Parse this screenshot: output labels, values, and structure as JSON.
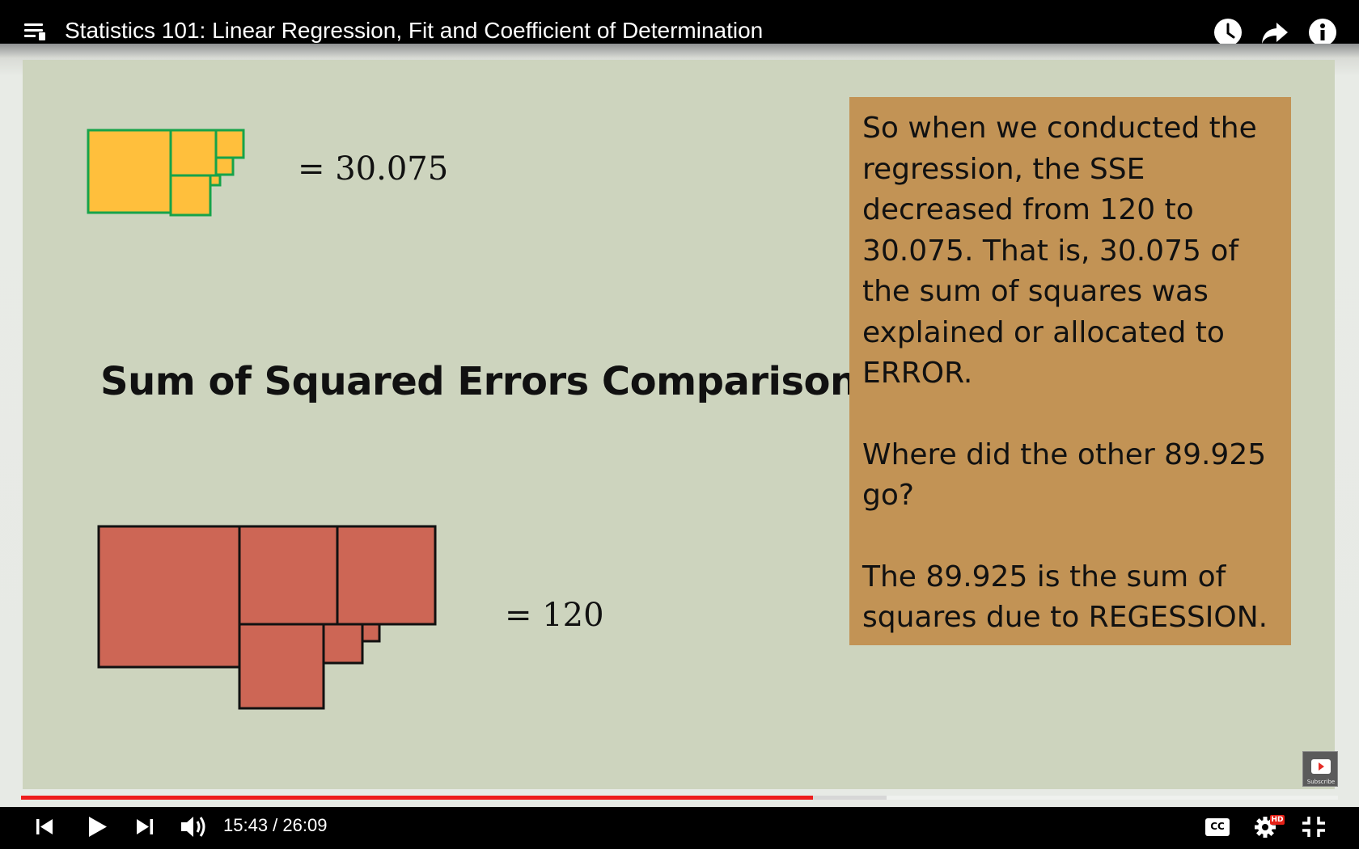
{
  "video": {
    "title": "Statistics 101: Linear Regression, Fit and Coefficient of Determination"
  },
  "top_icons": [
    "playlist-icon",
    "watch-later-clock-icon",
    "share-arrow-icon",
    "info-icon"
  ],
  "slide": {
    "top_value": "= 30.075",
    "heading": "Sum of Squared Errors Comparison",
    "bottom_value": "= 120",
    "text_box": {
      "p1": "So when we conducted the regression, the SSE decreased from 120 to 30.075. That is, 30.075 of the sum of squares was explained or allocated to ERROR.",
      "p2": "Where did the other 89.925 go?",
      "p3": "The 89.925 is the sum of squares due to REGESSION."
    },
    "colors": {
      "slide_bg": "#cdd4be",
      "yellow_square": "#ffbf3c",
      "yellow_border": "#16a34a",
      "red_square": "#cd6655",
      "text_box_bg": "#c29355"
    }
  },
  "player": {
    "time_display": "15:43 / 26:09",
    "played_fraction": 0.6015,
    "buffered_fraction": 0.657,
    "cc_label": "CC",
    "hd_badge": "HD",
    "subscribe_label": "Subscribe",
    "controls": [
      "previous-icon",
      "play-icon",
      "next-icon",
      "volume-icon",
      "captions-icon",
      "settings-gear-icon",
      "exit-fullscreen-icon"
    ]
  }
}
